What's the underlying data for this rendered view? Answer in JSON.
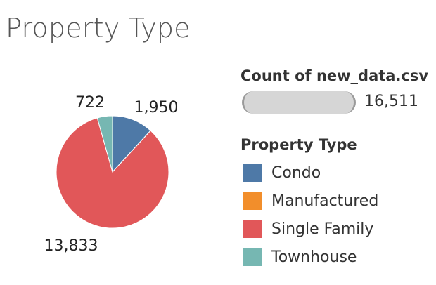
{
  "chart_data": {
    "type": "pie",
    "title": "Property Type",
    "categories": [
      "Condo",
      "Manufactured",
      "Single Family",
      "Townhouse"
    ],
    "values": [
      1950,
      6,
      13833,
      722
    ],
    "slice_labels": [
      "1,950",
      "",
      "13,833",
      "722"
    ],
    "colors": {
      "Condo": "#4e79a7",
      "Manufactured": "#f28e2b",
      "Single Family": "#e15759",
      "Townhouse": "#76b7b2"
    },
    "size_legend": {
      "title": "Count of new_data.csv",
      "value": "16,511"
    },
    "color_legend": {
      "title": "Property Type",
      "items": [
        {
          "label": "Condo",
          "color": "#4e79a7"
        },
        {
          "label": "Manufactured",
          "color": "#f28e2b"
        },
        {
          "label": "Single Family",
          "color": "#e15759"
        },
        {
          "label": "Townhouse",
          "color": "#76b7b2"
        }
      ]
    }
  }
}
